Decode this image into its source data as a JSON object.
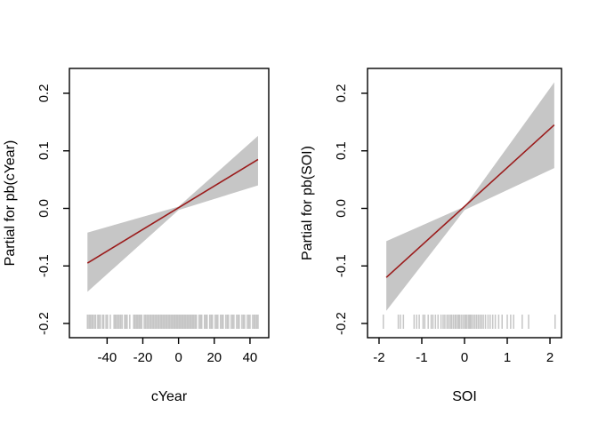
{
  "figure": {
    "background": "#ffffff"
  },
  "colors": {
    "fit_line": "#9b1b1b",
    "band": "#c6c6c6",
    "rug": "#c6c6c6",
    "axis": "#000000",
    "text": "#000000"
  },
  "chart_data": [
    {
      "type": "line",
      "panel": "left",
      "title": "",
      "xlabel": "cYear",
      "ylabel": "Partial for pb(cYear)",
      "xlim": [
        -61.1,
        50.5
      ],
      "ylim": [
        -0.2247,
        0.2432
      ],
      "grid": false,
      "legend": null,
      "xticks": {
        "values": [
          -40,
          -20,
          0,
          20,
          40
        ],
        "labels": [
          "-40",
          "-20",
          "0",
          "20",
          "40"
        ]
      },
      "yticks": {
        "values": [
          -0.2,
          -0.1,
          0.0,
          0.1,
          0.2
        ],
        "labels": [
          "-0.2",
          "-0.1",
          "0.0",
          "0.1",
          "0.2"
        ]
      },
      "line": {
        "x": [
          -51,
          44.5
        ],
        "y": [
          -0.095,
          0.085
        ]
      },
      "band": {
        "x": [
          -51,
          0,
          44.5
        ],
        "upper": [
          -0.042,
          0.003,
          0.126
        ],
        "lower": [
          -0.145,
          -0.003,
          0.04
        ]
      },
      "rug": [
        -51,
        -50.2,
        -49.5,
        -48.7,
        -48,
        -47.1,
        -46.4,
        -45.2,
        -44.6,
        -43.8,
        -42.5,
        -41.9,
        -40.6,
        -39.8,
        -38.2,
        -36.1,
        -35.4,
        -34.7,
        -33.9,
        -33.2,
        -32.4,
        -31.6,
        -30.2,
        -29.5,
        -28.8,
        -27.3,
        -25.1,
        -24.4,
        -23.6,
        -22.9,
        -22.1,
        -21.4,
        -20.6,
        -19.2,
        -18.5,
        -17.7,
        -17,
        -16.2,
        -15.5,
        -14.7,
        -14,
        -13.2,
        -12.5,
        -11.7,
        -11,
        -10.2,
        -9.5,
        -8.7,
        -8,
        -7.2,
        -6.5,
        -5.7,
        -5,
        -4.2,
        -3.5,
        -2.7,
        -2,
        -1.2,
        -0.5,
        0.3,
        1,
        1.8,
        2.5,
        3.3,
        4,
        4.8,
        5.5,
        6.3,
        7,
        7.8,
        8.5,
        9.3,
        10,
        11.5,
        12.3,
        13,
        14.5,
        15.3,
        16,
        17.5,
        18.3,
        19,
        20.5,
        21.3,
        22,
        23.5,
        24.3,
        25,
        26.5,
        27.3,
        28,
        29.5,
        30.3,
        31,
        32.5,
        33.3,
        34,
        35.5,
        36.3,
        37,
        38.5,
        39.3,
        40,
        41.5,
        42.3,
        43,
        43.8,
        44.5
      ]
    },
    {
      "type": "line",
      "panel": "right",
      "title": "",
      "xlabel": "SOI",
      "ylabel": "Partial for pb(SOI)",
      "xlim": [
        -2.27,
        2.27
      ],
      "ylim": [
        -0.2247,
        0.2432
      ],
      "grid": false,
      "legend": null,
      "xticks": {
        "values": [
          -2,
          -1,
          0,
          1,
          2
        ],
        "labels": [
          "-2",
          "-1",
          "0",
          "1",
          "2"
        ]
      },
      "yticks": {
        "values": [
          -0.2,
          -0.1,
          0.0,
          0.1,
          0.2
        ],
        "labels": [
          "-0.2",
          "-0.1",
          "0.0",
          "0.1",
          "0.2"
        ]
      },
      "line": {
        "x": [
          -1.83,
          2.1
        ],
        "y": [
          -0.12,
          0.145
        ]
      },
      "band": {
        "x": [
          -1.83,
          0,
          2.1
        ],
        "upper": [
          -0.057,
          0.003,
          0.219
        ],
        "lower": [
          -0.178,
          -0.003,
          0.07
        ]
      },
      "rug": [
        -1.9,
        -1.55,
        -1.5,
        -1.43,
        -1.18,
        -1.12,
        -1.06,
        -0.97,
        -0.93,
        -0.85,
        -0.78,
        -0.74,
        -0.68,
        -0.62,
        -0.55,
        -0.5,
        -0.46,
        -0.41,
        -0.37,
        -0.33,
        -0.3,
        -0.26,
        -0.22,
        -0.19,
        -0.15,
        -0.12,
        -0.08,
        -0.04,
        0,
        0.03,
        0.06,
        0.1,
        0.13,
        0.16,
        0.2,
        0.24,
        0.28,
        0.32,
        0.36,
        0.4,
        0.44,
        0.49,
        0.55,
        0.6,
        0.66,
        0.72,
        0.8,
        0.88,
        1.0,
        1.08,
        1.15,
        1.35,
        1.5,
        2.12
      ]
    }
  ]
}
